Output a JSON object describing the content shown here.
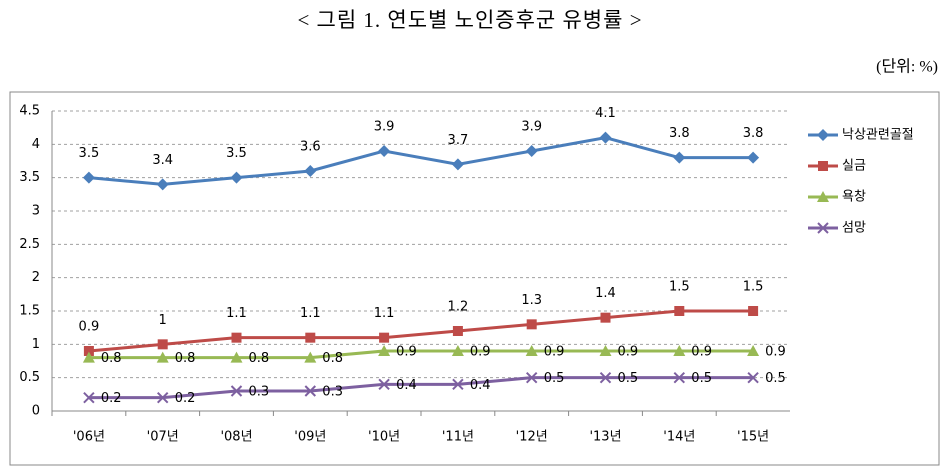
{
  "chart_data": {
    "type": "line",
    "title": "< 그림 1. 연도별 노인증후군 유병률 >",
    "unit": "(단위: %)",
    "categories": [
      "'06년",
      "'07년",
      "'08년",
      "'09년",
      "'10년",
      "'11년",
      "'12년",
      "'13년",
      "'14년",
      "'15년"
    ],
    "series": [
      {
        "name": "낙상관련골절",
        "color": "#4a7ebb",
        "marker": "diamond",
        "values": [
          3.5,
          3.4,
          3.5,
          3.6,
          3.9,
          3.7,
          3.9,
          4.1,
          3.8,
          3.8
        ]
      },
      {
        "name": "실금",
        "color": "#be4b48",
        "marker": "square",
        "values": [
          0.9,
          1,
          1.1,
          1.1,
          1.1,
          1.2,
          1.3,
          1.4,
          1.5,
          1.5
        ]
      },
      {
        "name": "욕창",
        "color": "#98b954",
        "marker": "triangle",
        "values": [
          0.8,
          0.8,
          0.8,
          0.8,
          0.9,
          0.9,
          0.9,
          0.9,
          0.9,
          0.9
        ]
      },
      {
        "name": "섬망",
        "color": "#7d60a0",
        "marker": "x",
        "values": [
          0.2,
          0.2,
          0.3,
          0.3,
          0.4,
          0.4,
          0.5,
          0.5,
          0.5,
          0.5
        ]
      }
    ],
    "ylim": [
      0,
      4.5
    ],
    "yticks": [
      0,
      0.5,
      1,
      1.5,
      2,
      2.5,
      3,
      3.5,
      4,
      4.5
    ],
    "grid": true,
    "legend": "right"
  }
}
